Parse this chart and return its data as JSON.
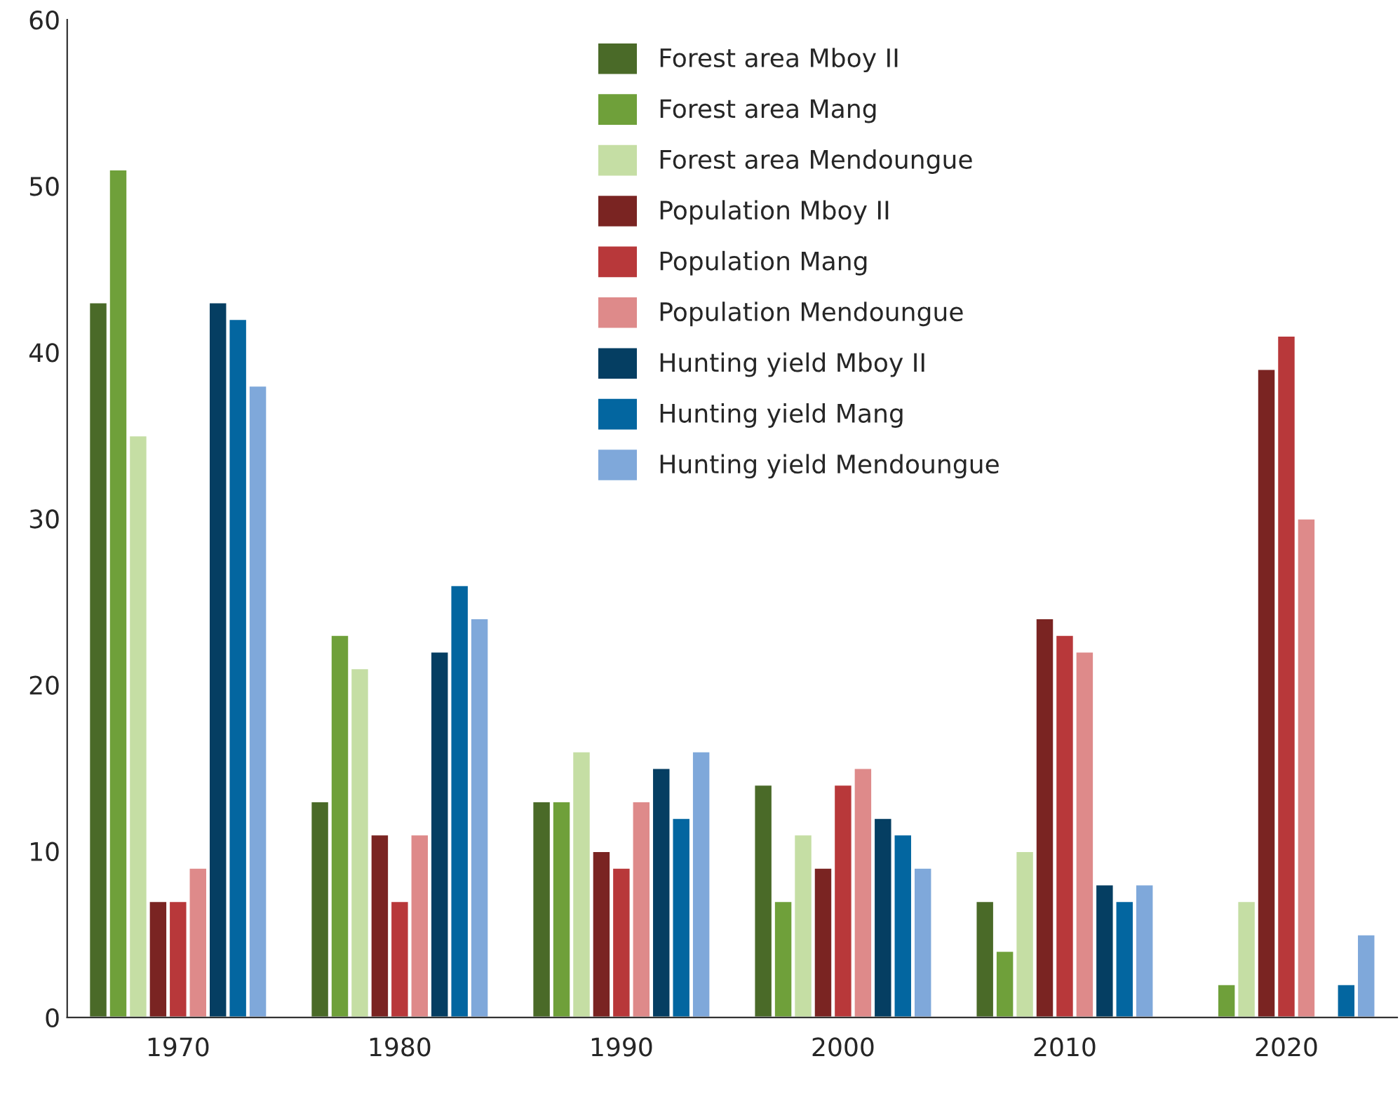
{
  "chart_data": {
    "type": "bar",
    "categories": [
      "1970",
      "1980",
      "1990",
      "2000",
      "2010",
      "2020"
    ],
    "ylim": [
      0,
      60
    ],
    "yticks": [
      0,
      10,
      20,
      30,
      40,
      50,
      60
    ],
    "grid": false,
    "legend": "top",
    "series": [
      {
        "name": "Forest area Mboy II",
        "color": "#4a6a28",
        "values": [
          43,
          13,
          13,
          14,
          7,
          null
        ]
      },
      {
        "name": "Forest area Mang",
        "color": "#6fa03a",
        "values": [
          51,
          23,
          13,
          7,
          4,
          2
        ]
      },
      {
        "name": "Forest area Mendoungue",
        "color": "#c5dea4",
        "values": [
          35,
          21,
          16,
          11,
          10,
          7
        ]
      },
      {
        "name": "Population Mboy II",
        "color": "#7a2422",
        "values": [
          7,
          11,
          10,
          9,
          24,
          39
        ]
      },
      {
        "name": "Population Mang",
        "color": "#b8383a",
        "values": [
          7,
          7,
          9,
          14,
          23,
          41
        ]
      },
      {
        "name": "Population Mendoungue",
        "color": "#de8a8a",
        "values": [
          9,
          11,
          13,
          15,
          22,
          30
        ]
      },
      {
        "name": "Hunting yield Mboy II",
        "color": "#053e62",
        "values": [
          43,
          22,
          15,
          12,
          8,
          null
        ]
      },
      {
        "name": "Hunting yield Mang",
        "color": "#0366a0",
        "values": [
          42,
          26,
          12,
          11,
          7,
          2
        ]
      },
      {
        "name": "Hunting yield Mendoungue",
        "color": "#7fa8da",
        "values": [
          38,
          24,
          16,
          9,
          8,
          5
        ]
      }
    ]
  }
}
